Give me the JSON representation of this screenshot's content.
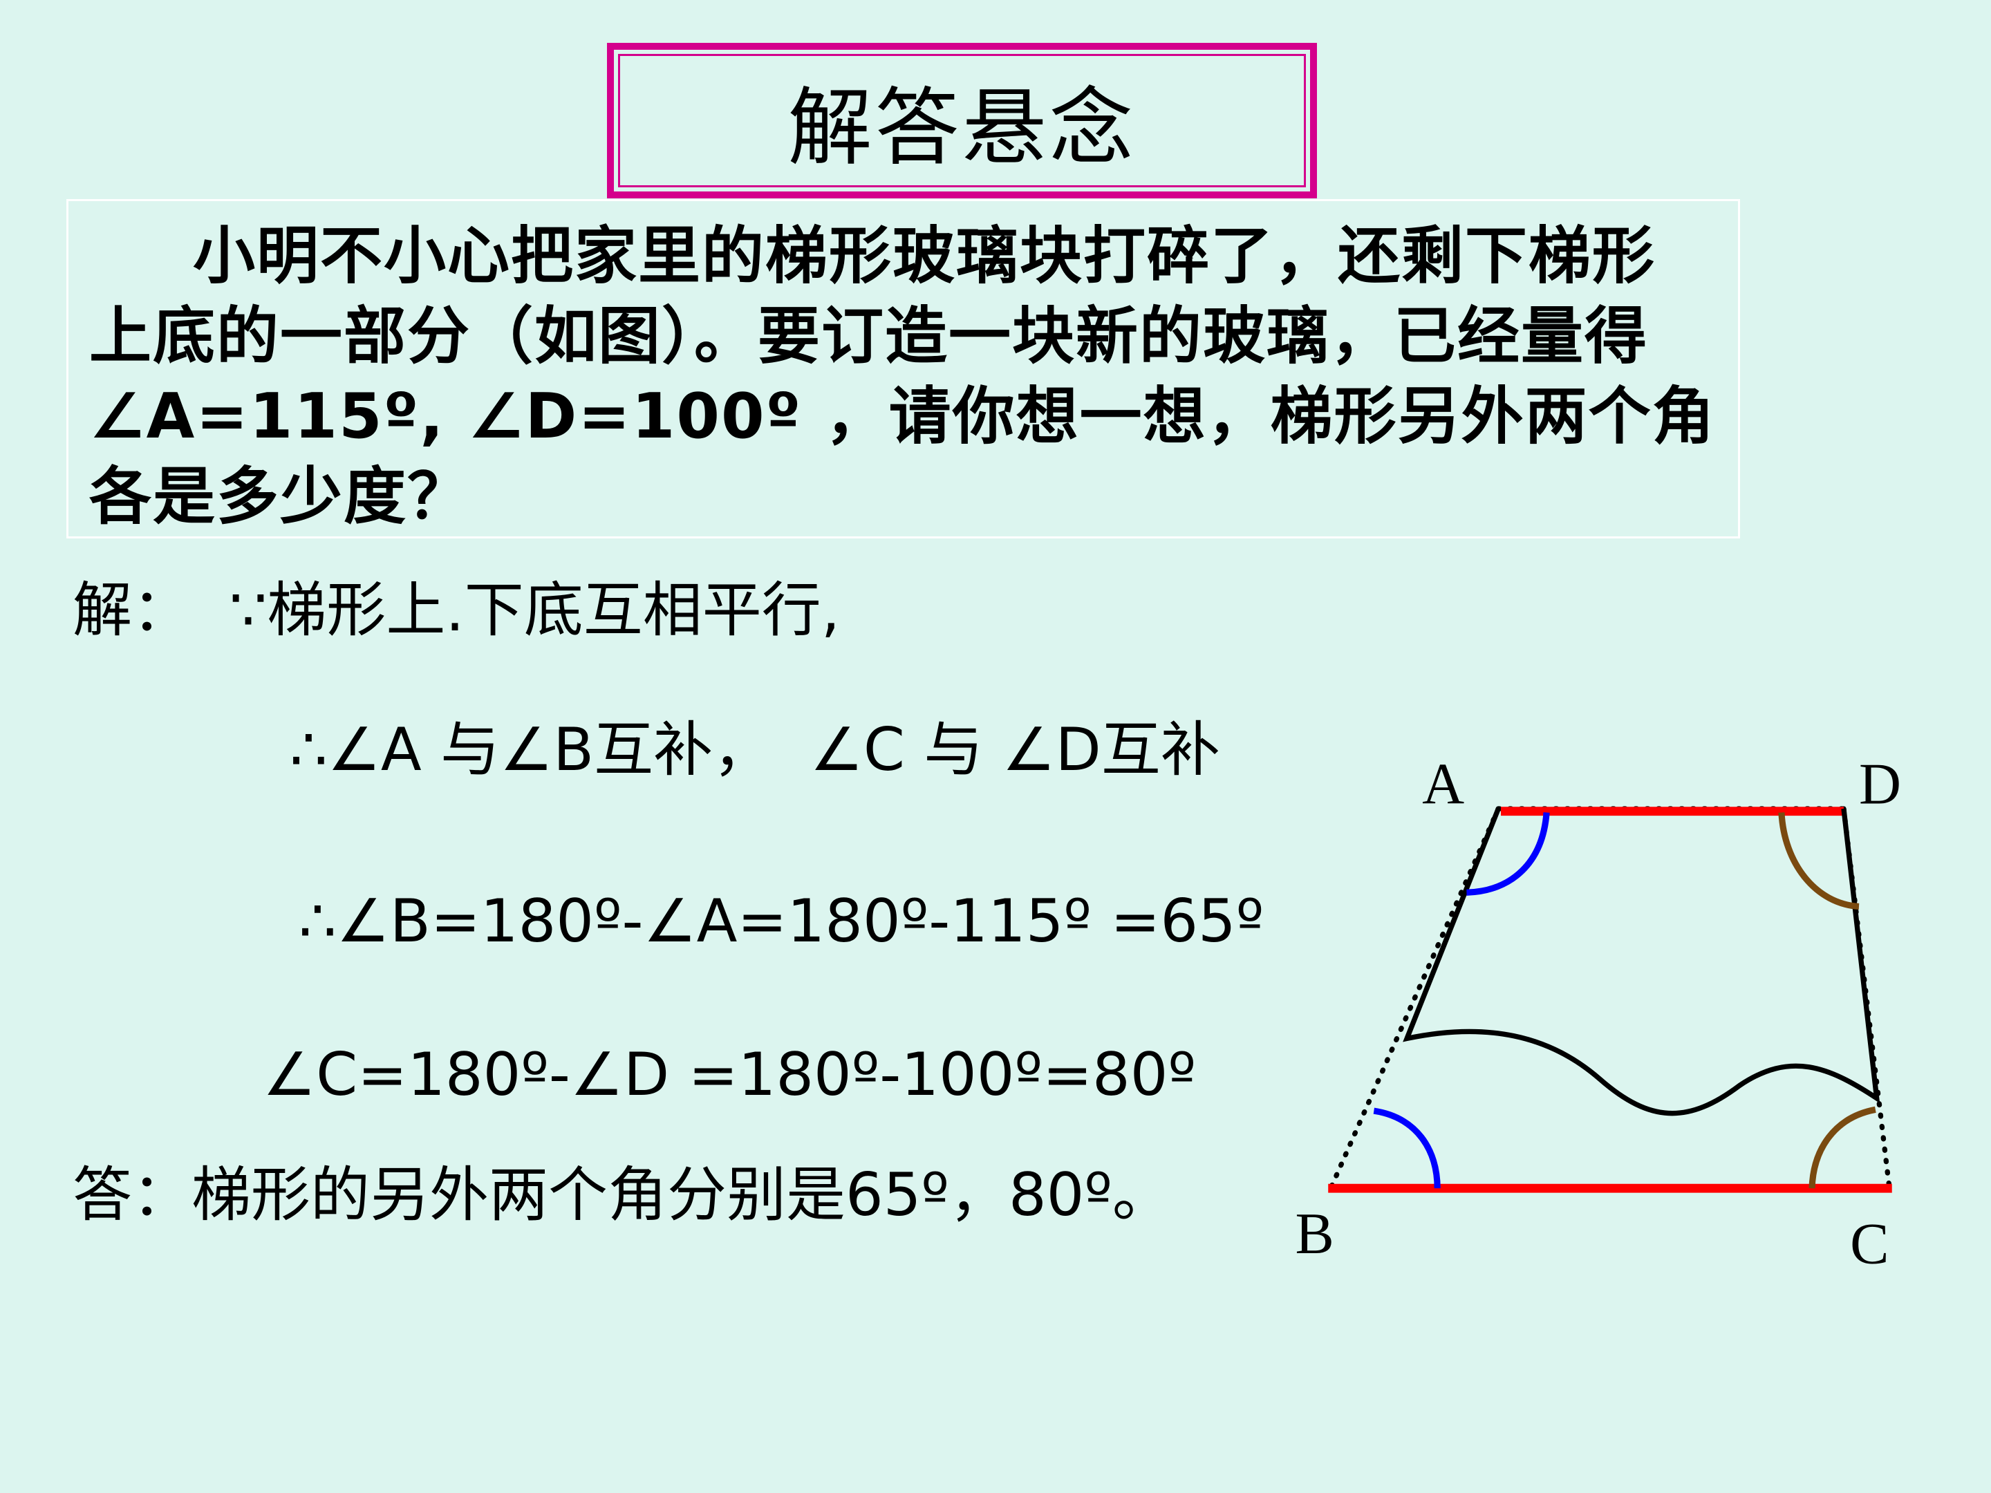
{
  "title": "解答悬念",
  "problem": "小明不小心把家里的梯形玻璃块打碎了，还剩下梯形上底的一部分（如图）。要订造一块新的玻璃，已经量得∠A=115º, ∠D=100º ，请你想一想，梯形另外两个角各是多少度？",
  "solution": {
    "line1": "解：  ∵梯形上.下底互相平行,",
    "line2": "∴∠A 与∠B互补，  ∠C 与 ∠D互补",
    "line3": "∴∠B=180º-∠A=180º-115º =65º",
    "line4": "∠C=180º-∠D =180º-100º=80º",
    "answer": "答：梯形的另外两个角分别是65º，80º。"
  },
  "diagram": {
    "labels": {
      "a": "A",
      "b": "B",
      "c": "C",
      "d": "D"
    },
    "colors": {
      "bases": "#ff0000",
      "angle_ab": "#0000ff",
      "angle_cd": "#7a4a10"
    }
  }
}
